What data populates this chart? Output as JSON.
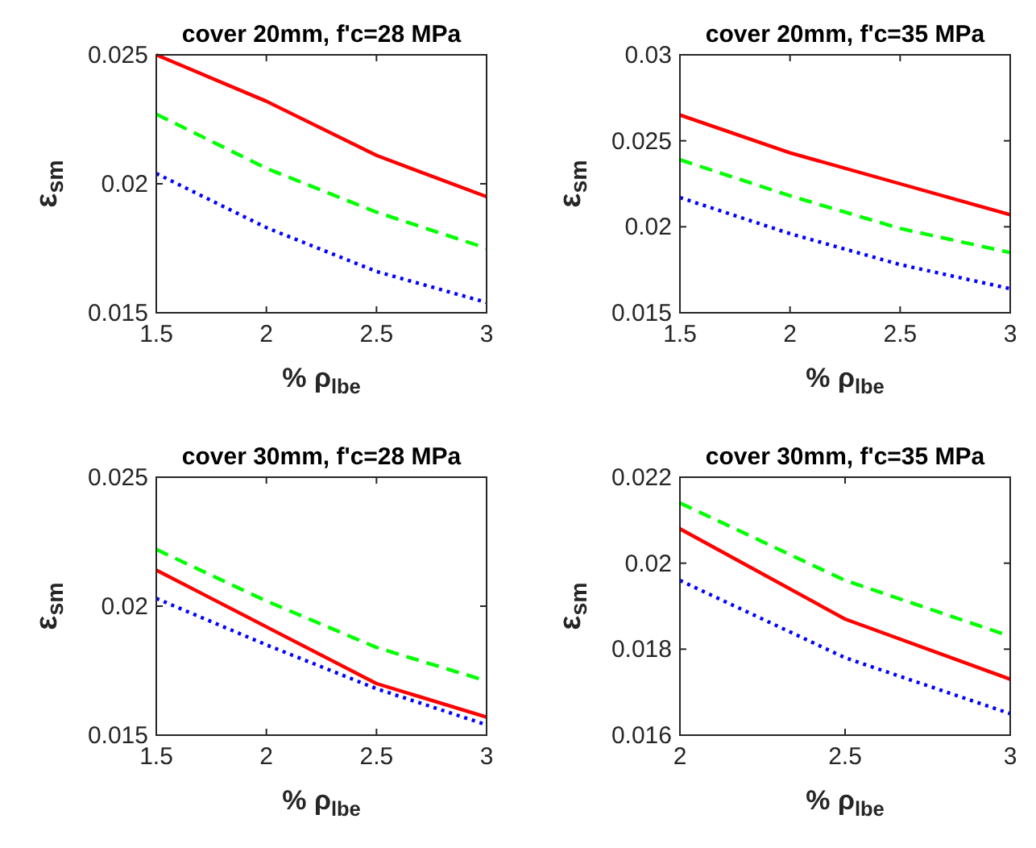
{
  "chart_data": [
    {
      "type": "line",
      "title": "cover 20mm, f'c=28 MPa",
      "xlabel": "% ρ$_{lbe}$",
      "ylabel": "ε$_{sm}$",
      "x": [
        1.5,
        2,
        2.5,
        3
      ],
      "xlim": [
        1.5,
        3
      ],
      "xticks": [
        1.5,
        2,
        2.5,
        3
      ],
      "ylim": [
        0.015,
        0.025
      ],
      "yticks": [
        0.015,
        0.02,
        0.025
      ],
      "series": [
        {
          "color": "#ff0000",
          "line_style": "solid",
          "values": [
            0.025,
            0.0232,
            0.0211,
            0.0195
          ]
        },
        {
          "color": "#00ff00",
          "line_style": "dashed",
          "values": [
            0.0227,
            0.0206,
            0.0189,
            0.0175
          ]
        },
        {
          "color": "#0000ff",
          "line_style": "dotted",
          "values": [
            0.0204,
            0.0183,
            0.0166,
            0.0154
          ]
        }
      ]
    },
    {
      "type": "line",
      "title": "cover 20mm, f'c=35 MPa",
      "xlabel": "% ρ$_{lbe}$",
      "ylabel": "ε$_{sm}$",
      "x": [
        1.5,
        2,
        2.5,
        3
      ],
      "xlim": [
        1.5,
        3
      ],
      "xticks": [
        1.5,
        2,
        2.5,
        3
      ],
      "ylim": [
        0.015,
        0.03
      ],
      "yticks": [
        0.015,
        0.02,
        0.025,
        0.03
      ],
      "series": [
        {
          "color": "#ff0000",
          "line_style": "solid",
          "values": [
            0.0265,
            0.0243,
            0.0225,
            0.0207
          ]
        },
        {
          "color": "#00ff00",
          "line_style": "dashed",
          "values": [
            0.0239,
            0.0218,
            0.0199,
            0.0185
          ]
        },
        {
          "color": "#0000ff",
          "line_style": "dotted",
          "values": [
            0.0217,
            0.0196,
            0.0178,
            0.0164
          ]
        }
      ]
    },
    {
      "type": "line",
      "title": "cover 30mm, f'c=28 MPa",
      "xlabel": "% ρ$_{lbe}$",
      "ylabel": "ε$_{sm}$",
      "x": [
        1.5,
        2,
        2.5,
        3
      ],
      "xlim": [
        1.5,
        3
      ],
      "xticks": [
        1.5,
        2,
        2.5,
        3
      ],
      "ylim": [
        0.015,
        0.025
      ],
      "yticks": [
        0.015,
        0.02,
        0.025
      ],
      "series": [
        {
          "color": "#ff0000",
          "line_style": "solid",
          "values": [
            0.0214,
            0.0192,
            0.017,
            0.0157
          ]
        },
        {
          "color": "#00ff00",
          "line_style": "dashed",
          "values": [
            0.0222,
            0.0202,
            0.0184,
            0.0171
          ]
        },
        {
          "color": "#0000ff",
          "line_style": "dotted",
          "values": [
            0.0203,
            0.0185,
            0.0168,
            0.0154
          ]
        }
      ]
    },
    {
      "type": "line",
      "title": "cover 30mm, f'c=35 MPa",
      "xlabel": "% ρ$_{lbe}$",
      "ylabel": "ε$_{sm}$",
      "x": [
        2,
        2.5,
        3
      ],
      "xlim": [
        2,
        3
      ],
      "xticks": [
        2,
        2.5,
        3
      ],
      "ylim": [
        0.016,
        0.022
      ],
      "yticks": [
        0.016,
        0.018,
        0.02,
        0.022
      ],
      "series": [
        {
          "color": "#ff0000",
          "line_style": "solid",
          "values": [
            0.0208,
            0.0187,
            0.0173
          ]
        },
        {
          "color": "#00ff00",
          "line_style": "dashed",
          "values": [
            0.0214,
            0.0196,
            0.0183
          ]
        },
        {
          "color": "#0000ff",
          "line_style": "dotted",
          "values": [
            0.0196,
            0.0178,
            0.0165
          ]
        }
      ]
    }
  ]
}
